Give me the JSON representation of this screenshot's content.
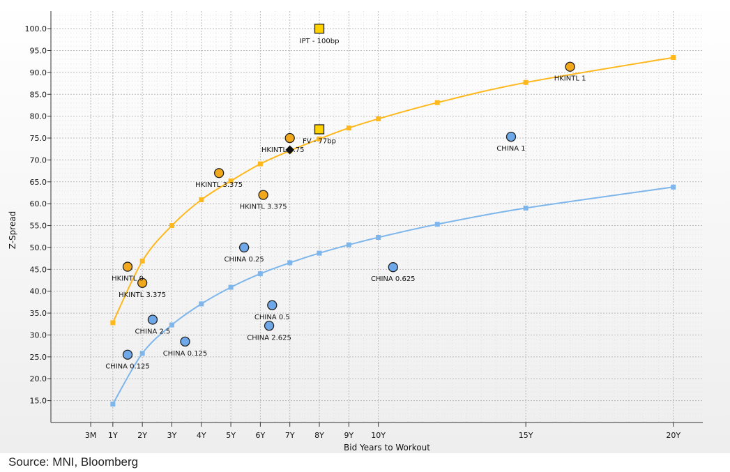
{
  "chart_data": {
    "type": "scatter",
    "title": "",
    "xlabel": "Bid Years to Workout",
    "ylabel": "Z-Spread",
    "xlim": [
      -1.1,
      21
    ],
    "ylim": [
      10,
      104
    ],
    "grid": true,
    "legend": "none",
    "x_ticks": [
      {
        "label": "3M",
        "value": 0.25
      },
      {
        "label": "1Y",
        "value": 1
      },
      {
        "label": "2Y",
        "value": 2
      },
      {
        "label": "3Y",
        "value": 3
      },
      {
        "label": "4Y",
        "value": 4
      },
      {
        "label": "5Y",
        "value": 5
      },
      {
        "label": "6Y",
        "value": 6
      },
      {
        "label": "7Y",
        "value": 7
      },
      {
        "label": "8Y",
        "value": 8
      },
      {
        "label": "9Y",
        "value": 9
      },
      {
        "label": "10Y",
        "value": 10
      },
      {
        "label": "15Y",
        "value": 15
      },
      {
        "label": "20Y",
        "value": 20
      }
    ],
    "y_ticks": [
      "15.0",
      "20.0",
      "25.0",
      "30.0",
      "35.0",
      "40.0",
      "45.0",
      "50.0",
      "55.0",
      "60.0",
      "65.0",
      "70.0",
      "75.0",
      "80.0",
      "85.0",
      "90.0",
      "95.0",
      "100.0"
    ],
    "curves": [
      {
        "color": "#FFB81C",
        "x": [
          1,
          2,
          3,
          4,
          5,
          6,
          7,
          8,
          9,
          10,
          12,
          15,
          20
        ],
        "y": [
          32.8,
          46.9,
          55.0,
          60.9,
          65.2,
          69.1,
          72.1,
          74.8,
          77.3,
          79.4,
          83.1,
          87.7,
          93.4
        ]
      },
      {
        "color": "#7EB6EC",
        "x": [
          1,
          2,
          3,
          4,
          5,
          6,
          7,
          8,
          9,
          10,
          12,
          15,
          20
        ],
        "y": [
          14.2,
          25.8,
          32.3,
          37.1,
          40.9,
          44.0,
          46.5,
          48.7,
          50.6,
          52.3,
          55.3,
          59.0,
          63.8
        ]
      }
    ],
    "points": [
      {
        "label": "HKINTL 0",
        "x": 1.5,
        "y": 45.6,
        "marker": "circle",
        "color": "#F2A81D"
      },
      {
        "label": "HKINTL 3.375",
        "x": 2.0,
        "y": 41.9,
        "marker": "circle",
        "color": "#F2A81D"
      },
      {
        "label": "HKINTL 3.375",
        "x": 4.6,
        "y": 67.0,
        "marker": "circle",
        "color": "#F2A81D"
      },
      {
        "label": "HKINTL 3.375",
        "x": 6.1,
        "y": 62.0,
        "marker": "circle",
        "color": "#F2A81D"
      },
      {
        "label": "HKINTL 3.75",
        "x": 7.0,
        "y": 75.0,
        "marker": "circle",
        "color": "#F2A81D"
      },
      {
        "label": "HKINTL 1",
        "x": 16.5,
        "y": 91.3,
        "marker": "circle",
        "color": "#F2A81D"
      },
      {
        "label": "CHINA 0.125",
        "x": 1.5,
        "y": 25.5,
        "marker": "circle",
        "color": "#6FA8E8"
      },
      {
        "label": "CHINA 2.5",
        "x": 2.35,
        "y": 33.5,
        "marker": "circle",
        "color": "#6FA8E8"
      },
      {
        "label": "CHINA 0.125",
        "x": 3.45,
        "y": 28.5,
        "marker": "circle",
        "color": "#6FA8E8"
      },
      {
        "label": "CHINA 0.25",
        "x": 5.45,
        "y": 50.0,
        "marker": "circle",
        "color": "#6FA8E8"
      },
      {
        "label": "CHINA 0.5",
        "x": 6.4,
        "y": 36.8,
        "marker": "circle",
        "color": "#6FA8E8"
      },
      {
        "label": "CHINA 2.625",
        "x": 6.3,
        "y": 32.1,
        "marker": "circle",
        "color": "#6FA8E8"
      },
      {
        "label": "CHINA 0.625",
        "x": 10.5,
        "y": 45.5,
        "marker": "circle",
        "color": "#6FA8E8"
      },
      {
        "label": "CHINA 1",
        "x": 14.5,
        "y": 75.3,
        "marker": "circle",
        "color": "#6FA8E8"
      },
      {
        "label": "IPT - 100bp",
        "x": 8.0,
        "y": 100.0,
        "marker": "square",
        "color": "#FFD200"
      },
      {
        "label": "FV - 77bp",
        "x": 8.0,
        "y": 77.0,
        "marker": "square",
        "color": "#FFD200"
      },
      {
        "label": "",
        "x": 7.0,
        "y": 72.3,
        "marker": "diamond",
        "color": "#111111"
      }
    ],
    "label_offsets": [
      [
        0,
        13
      ],
      [
        0,
        13
      ],
      [
        0,
        13
      ],
      [
        0,
        13
      ],
      [
        -10,
        13
      ],
      [
        0,
        13
      ],
      [
        0,
        13
      ],
      [
        0,
        13
      ],
      [
        0,
        13
      ],
      [
        0,
        13
      ],
      [
        0,
        13
      ],
      [
        0,
        13
      ],
      [
        0,
        13
      ],
      [
        0,
        13
      ],
      [
        0,
        14
      ],
      [
        0,
        13
      ],
      [
        0,
        0
      ]
    ]
  },
  "source": "Source: MNI, Bloomberg"
}
